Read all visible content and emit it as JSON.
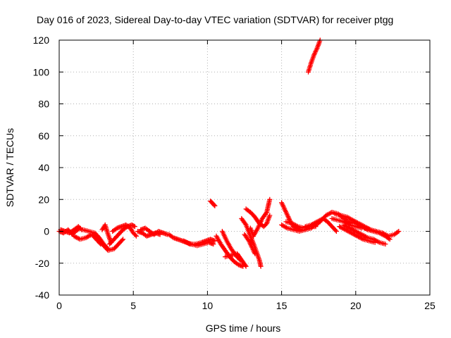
{
  "chart_data": {
    "type": "scatter",
    "title": "Day 016 of 2023, Sidereal Day-to-day VTEC variation (SDTVAR) for receiver ptgg",
    "xlabel": "GPS time / hours",
    "ylabel": "SDTVAR / TECUs",
    "xlim": [
      0,
      25
    ],
    "ylim": [
      -40,
      120
    ],
    "xticks": [
      0,
      5,
      10,
      15,
      20,
      25
    ],
    "yticks": [
      -40,
      -20,
      0,
      20,
      40,
      60,
      80,
      100,
      120
    ],
    "grid": true,
    "marker": "+",
    "series_color": "#ff0000",
    "tracks": [
      [
        [
          0.0,
          0
        ],
        [
          0.3,
          -1
        ],
        [
          0.6,
          1
        ],
        [
          0.9,
          -2
        ],
        [
          1.1,
          0
        ],
        [
          1.4,
          2
        ]
      ],
      [
        [
          0.1,
          1
        ],
        [
          0.4,
          0
        ],
        [
          0.7,
          -1
        ],
        [
          1.0,
          1
        ],
        [
          1.3,
          3
        ],
        [
          1.5,
          1
        ]
      ],
      [
        [
          1.0,
          -3
        ],
        [
          1.4,
          -5
        ],
        [
          1.8,
          -4
        ],
        [
          2.2,
          -2
        ],
        [
          2.5,
          -5
        ],
        [
          2.8,
          -8
        ]
      ],
      [
        [
          1.6,
          1
        ],
        [
          2.0,
          0
        ],
        [
          2.4,
          -1
        ],
        [
          2.7,
          -4
        ],
        [
          3.0,
          -8
        ],
        [
          3.3,
          -11
        ]
      ],
      [
        [
          2.4,
          -3
        ],
        [
          2.7,
          -6
        ],
        [
          3.0,
          -9
        ],
        [
          3.3,
          -12
        ],
        [
          3.7,
          -11
        ],
        [
          4.0,
          -8
        ],
        [
          4.3,
          -5
        ]
      ],
      [
        [
          2.9,
          1
        ],
        [
          3.1,
          4
        ],
        [
          3.3,
          -2
        ],
        [
          3.5,
          -7
        ]
      ],
      [
        [
          3.4,
          -8
        ],
        [
          3.7,
          -5
        ],
        [
          4.0,
          -2
        ],
        [
          4.3,
          1
        ],
        [
          4.6,
          3
        ],
        [
          4.9,
          4
        ],
        [
          5.1,
          3
        ]
      ],
      [
        [
          3.6,
          0
        ],
        [
          3.9,
          2
        ],
        [
          4.2,
          3
        ],
        [
          4.5,
          4
        ],
        [
          4.8,
          2
        ],
        [
          5.0,
          -1
        ],
        [
          5.2,
          -3
        ]
      ],
      [
        [
          5.3,
          0
        ],
        [
          5.6,
          -1
        ],
        [
          5.9,
          -3
        ],
        [
          6.2,
          -2
        ],
        [
          6.5,
          -1
        ],
        [
          6.8,
          -2
        ]
      ],
      [
        [
          5.5,
          1
        ],
        [
          5.8,
          2
        ],
        [
          6.1,
          0
        ],
        [
          6.4,
          -2
        ],
        [
          6.7,
          0
        ],
        [
          7.0,
          -1
        ],
        [
          7.3,
          -2
        ]
      ],
      [
        [
          7.4,
          -2
        ],
        [
          7.7,
          -4
        ],
        [
          8.0,
          -5
        ],
        [
          8.3,
          -6
        ],
        [
          8.6,
          -7
        ],
        [
          8.9,
          -8
        ]
      ],
      [
        [
          8.4,
          -6
        ],
        [
          8.8,
          -8
        ],
        [
          9.2,
          -8
        ],
        [
          9.6,
          -7
        ],
        [
          9.9,
          -6
        ],
        [
          10.2,
          -5
        ],
        [
          10.5,
          -6
        ]
      ],
      [
        [
          8.9,
          -8
        ],
        [
          9.3,
          -9
        ],
        [
          9.7,
          -8
        ],
        [
          10.1,
          -7
        ],
        [
          10.4,
          -8
        ]
      ],
      [
        [
          10.2,
          19
        ],
        [
          10.3,
          18
        ],
        [
          10.4,
          17
        ],
        [
          10.5,
          16
        ]
      ],
      [
        [
          10.6,
          -3
        ],
        [
          10.9,
          -8
        ],
        [
          11.2,
          -12
        ],
        [
          11.5,
          -16
        ],
        [
          11.8,
          -19
        ],
        [
          12.1,
          -21
        ],
        [
          12.4,
          -22
        ]
      ],
      [
        [
          11.0,
          0
        ],
        [
          11.3,
          -6
        ],
        [
          11.6,
          -11
        ],
        [
          11.9,
          -15
        ],
        [
          12.2,
          -18
        ]
      ],
      [
        [
          11.2,
          -16
        ],
        [
          11.6,
          -15
        ],
        [
          12.0,
          -14
        ],
        [
          12.3,
          -18
        ],
        [
          12.6,
          -22
        ]
      ],
      [
        [
          12.3,
          8
        ],
        [
          12.6,
          4
        ],
        [
          12.9,
          -3
        ],
        [
          13.2,
          -10
        ],
        [
          13.5,
          -18
        ],
        [
          13.6,
          -22
        ]
      ],
      [
        [
          12.5,
          -2
        ],
        [
          12.8,
          -6
        ],
        [
          13.0,
          -10
        ],
        [
          13.2,
          -14
        ]
      ],
      [
        [
          12.6,
          14
        ],
        [
          12.9,
          12
        ],
        [
          13.2,
          9
        ],
        [
          13.5,
          5
        ],
        [
          13.8,
          3
        ],
        [
          14.0,
          5
        ],
        [
          14.2,
          10
        ]
      ],
      [
        [
          12.9,
          2
        ],
        [
          13.1,
          -3
        ],
        [
          13.4,
          2
        ],
        [
          13.7,
          8
        ],
        [
          14.0,
          12
        ],
        [
          14.1,
          16
        ],
        [
          14.2,
          20
        ]
      ],
      [
        [
          15.0,
          18
        ],
        [
          15.2,
          14
        ],
        [
          15.4,
          10
        ],
        [
          15.6,
          6
        ],
        [
          15.8,
          3
        ],
        [
          16.0,
          2
        ],
        [
          16.3,
          1
        ]
      ],
      [
        [
          15.0,
          4
        ],
        [
          15.4,
          2
        ],
        [
          15.8,
          1
        ],
        [
          16.2,
          0
        ],
        [
          16.6,
          1
        ],
        [
          17.0,
          2
        ],
        [
          17.2,
          4
        ]
      ],
      [
        [
          15.3,
          6
        ],
        [
          15.7,
          5
        ],
        [
          16.1,
          3
        ],
        [
          16.5,
          2
        ],
        [
          16.9,
          3
        ],
        [
          17.3,
          3
        ]
      ],
      [
        [
          16.6,
          3
        ],
        [
          17.0,
          4
        ],
        [
          17.4,
          6
        ],
        [
          17.8,
          8
        ],
        [
          18.1,
          6
        ],
        [
          18.4,
          3
        ],
        [
          18.7,
          0
        ]
      ],
      [
        [
          17.2,
          3
        ],
        [
          17.6,
          6
        ],
        [
          18.0,
          10
        ],
        [
          18.4,
          12
        ],
        [
          18.8,
          11
        ],
        [
          19.2,
          8
        ],
        [
          19.6,
          5
        ]
      ],
      [
        [
          18.4,
          8
        ],
        [
          18.8,
          7
        ],
        [
          19.2,
          6
        ],
        [
          19.6,
          4
        ],
        [
          20.0,
          3
        ],
        [
          20.4,
          2
        ]
      ],
      [
        [
          18.6,
          11
        ],
        [
          19.0,
          10
        ],
        [
          19.4,
          9
        ],
        [
          19.8,
          7
        ],
        [
          20.2,
          5
        ],
        [
          20.6,
          3
        ],
        [
          21.0,
          1
        ]
      ],
      [
        [
          18.9,
          3
        ],
        [
          19.3,
          1
        ],
        [
          19.7,
          -1
        ],
        [
          20.1,
          -3
        ],
        [
          20.5,
          -5
        ],
        [
          20.9,
          -6
        ],
        [
          21.3,
          -7
        ]
      ],
      [
        [
          19.2,
          4
        ],
        [
          19.6,
          2
        ],
        [
          20.0,
          0
        ],
        [
          20.4,
          -2
        ],
        [
          20.8,
          -4
        ],
        [
          21.2,
          -5
        ],
        [
          21.6,
          -7
        ],
        [
          22.0,
          -8
        ]
      ],
      [
        [
          19.6,
          6
        ],
        [
          20.0,
          5
        ],
        [
          20.4,
          3
        ],
        [
          20.8,
          1
        ],
        [
          21.2,
          0
        ],
        [
          21.6,
          -1
        ],
        [
          22.0,
          -3
        ],
        [
          22.3,
          -5
        ]
      ],
      [
        [
          20.6,
          2
        ],
        [
          21.0,
          1
        ],
        [
          21.4,
          0
        ],
        [
          21.8,
          -1
        ],
        [
          22.2,
          -3
        ],
        [
          22.6,
          -2
        ],
        [
          22.9,
          0
        ]
      ],
      [
        [
          16.8,
          100
        ],
        [
          17.0,
          106
        ],
        [
          17.2,
          111
        ],
        [
          17.4,
          115
        ],
        [
          17.6,
          120
        ]
      ]
    ]
  }
}
